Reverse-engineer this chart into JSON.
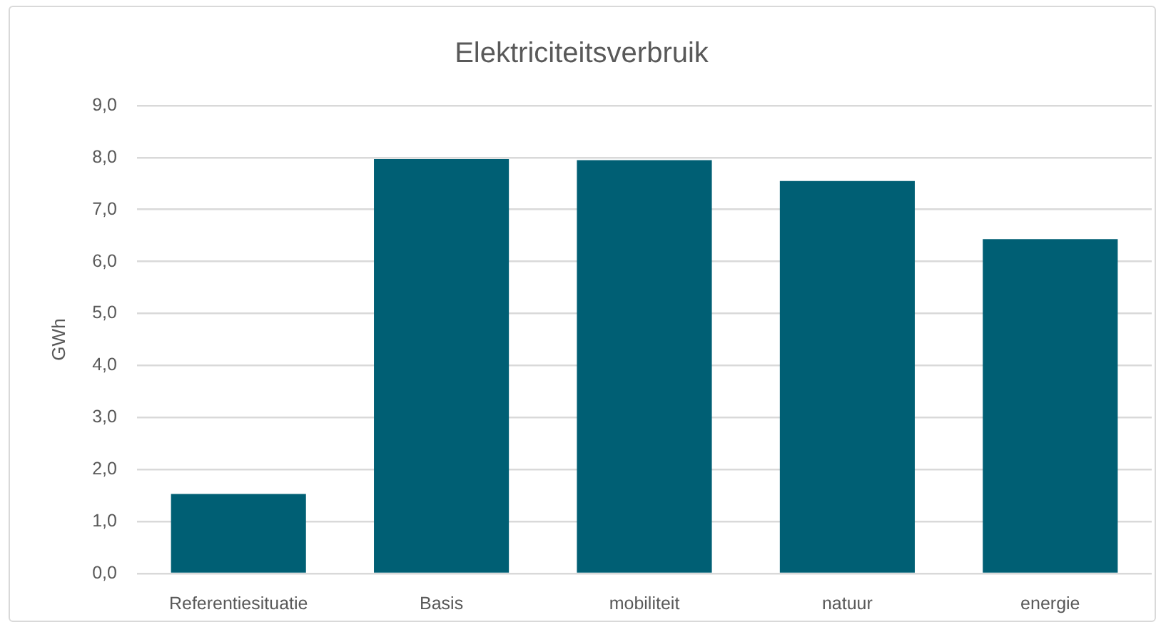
{
  "chart_data": {
    "type": "bar",
    "title": "Elektriciteitsverbruik",
    "ylabel": "GWh",
    "categories": [
      "Referentiesituatie",
      "Basis",
      "mobiliteit",
      "natuur",
      "energie"
    ],
    "values": [
      1.53,
      7.97,
      7.95,
      7.55,
      6.43
    ],
    "color": "#005f74",
    "ylim": [
      0,
      9
    ],
    "yticks": [
      {
        "value": 0,
        "label": "0,0"
      },
      {
        "value": 1,
        "label": "1,0"
      },
      {
        "value": 2,
        "label": "2,0"
      },
      {
        "value": 3,
        "label": "3,0"
      },
      {
        "value": 4,
        "label": "4,0"
      },
      {
        "value": 5,
        "label": "5,0"
      },
      {
        "value": 6,
        "label": "6,0"
      },
      {
        "value": 7,
        "label": "7,0"
      },
      {
        "value": 8,
        "label": "8,0"
      },
      {
        "value": 9,
        "label": "9,0"
      }
    ],
    "grid": "y"
  }
}
